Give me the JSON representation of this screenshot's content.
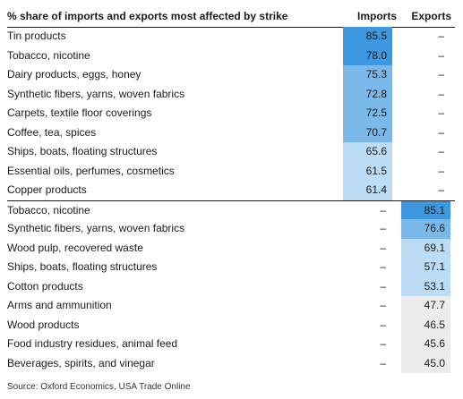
{
  "chart_data": {
    "type": "table",
    "title": "% share of imports and exports most affected by strike",
    "columns": [
      "Imports",
      "Exports"
    ],
    "dash": "–",
    "source": "Source: Oxford Economics, USA Trade Online",
    "colors": {
      "dark": "#3d98e0",
      "medium": "#79b8e9",
      "light": "#bcdcf5",
      "grey": "#ececec"
    },
    "groups": [
      {
        "name": "imports",
        "rows": [
          {
            "label": "Tin products",
            "imports": "85.5",
            "exports": null,
            "shade": "dark"
          },
          {
            "label": "Tobacco, nicotine",
            "imports": "78.0",
            "exports": null,
            "shade": "dark"
          },
          {
            "label": "Dairy products, eggs, honey",
            "imports": "75.3",
            "exports": null,
            "shade": "medium"
          },
          {
            "label": "Synthetic fibers, yarns, woven fabrics",
            "imports": "72.8",
            "exports": null,
            "shade": "medium"
          },
          {
            "label": "Carpets, textile floor coverings",
            "imports": "72.5",
            "exports": null,
            "shade": "medium"
          },
          {
            "label": "Coffee, tea, spices",
            "imports": "70.7",
            "exports": null,
            "shade": "medium"
          },
          {
            "label": "Ships, boats, floating structures",
            "imports": "65.6",
            "exports": null,
            "shade": "light"
          },
          {
            "label": "Essential oils, perfumes, cosmetics",
            "imports": "61.5",
            "exports": null,
            "shade": "light"
          },
          {
            "label": "Copper products",
            "imports": "61.4",
            "exports": null,
            "shade": "light"
          }
        ]
      },
      {
        "name": "exports",
        "rows": [
          {
            "label": "Tobacco, nicotine",
            "imports": null,
            "exports": "85.1",
            "shade": "dark"
          },
          {
            "label": "Synthetic fibers, yarns, woven fabrics",
            "imports": null,
            "exports": "76.6",
            "shade": "medium"
          },
          {
            "label": "Wood pulp, recovered waste",
            "imports": null,
            "exports": "69.1",
            "shade": "light"
          },
          {
            "label": "Ships, boats, floating structures",
            "imports": null,
            "exports": "57.1",
            "shade": "light"
          },
          {
            "label": "Cotton products",
            "imports": null,
            "exports": "53.1",
            "shade": "light"
          },
          {
            "label": "Arms and ammunition",
            "imports": null,
            "exports": "47.7",
            "shade": "grey"
          },
          {
            "label": "Wood products",
            "imports": null,
            "exports": "46.5",
            "shade": "grey"
          },
          {
            "label": "Food industry residues, animal feed",
            "imports": null,
            "exports": "45.6",
            "shade": "grey"
          },
          {
            "label": "Beverages, spirits, and vinegar",
            "imports": null,
            "exports": "45.0",
            "shade": "grey"
          }
        ]
      }
    ]
  }
}
